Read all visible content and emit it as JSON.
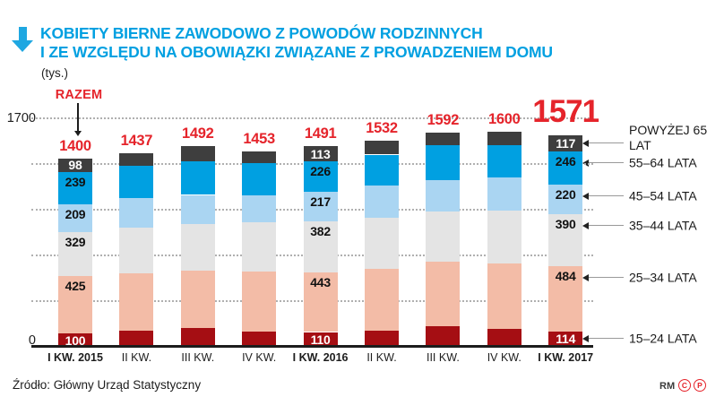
{
  "header": {
    "title_line1": "KOBIETY BIERNE ZAWODOWO Z POWODÓW RODZINNYCH",
    "title_line2": "I ZE WZGLĘDU NA OBOWIĄZKI ZWIĄZANE Z PROWADZENIEM DOMU",
    "unit": "(tys.)",
    "accent_color": "#00A0E1"
  },
  "chart_data": {
    "type": "bar",
    "stacked": true,
    "annotation_total": "RAZEM",
    "ylim": [
      0,
      1700
    ],
    "axis_labels": {
      "top": "1700",
      "bottom": "0"
    },
    "gridline_values": [
      340,
      680,
      1020,
      1360,
      1700
    ],
    "grid": true,
    "categories": [
      "I KW. 2015",
      "II KW.",
      "III KW.",
      "IV KW.",
      "I KW. 2016",
      "II KW.",
      "III KW.",
      "IV KW.",
      "I KW. 2017"
    ],
    "bold_categories": [
      0,
      4,
      8
    ],
    "labeled_columns": [
      0,
      4,
      8
    ],
    "totals": [
      1400,
      1437,
      1492,
      1453,
      1491,
      1532,
      1592,
      1600,
      1571
    ],
    "highlight_total_index": 8,
    "totals_color": "#E5242B",
    "series": [
      {
        "name": "15–24 LATA",
        "color": "#A50E13",
        "label_color": "#FFFFFF",
        "values": [
          100,
          120,
          138,
          113,
          110,
          123,
          152,
          136,
          114
        ]
      },
      {
        "name": "25–34 LATA",
        "color": "#F3BCA7",
        "label_color": "#111111",
        "values": [
          425,
          428,
          428,
          444,
          443,
          458,
          484,
          486,
          484
        ]
      },
      {
        "name": "35–44 LATA",
        "color": "#E4E4E4",
        "label_color": "#111111",
        "values": [
          329,
          338,
          350,
          367,
          382,
          376,
          370,
          394,
          390
        ]
      },
      {
        "name": "45–54 LATA",
        "color": "#AAD5F2",
        "label_color": "#111111",
        "values": [
          209,
          218,
          214,
          200,
          217,
          240,
          234,
          245,
          220
        ]
      },
      {
        "name": "55–64 LATA",
        "color": "#00A0E1",
        "label_color": "#111111",
        "values": [
          239,
          243,
          248,
          244,
          226,
          233,
          258,
          237,
          246
        ]
      },
      {
        "name": "POWYŻEJ 65 LAT",
        "color": "#3E3E3E",
        "label_color": "#FFFFFF",
        "values": [
          98,
          90,
          114,
          85,
          113,
          102,
          94,
          102,
          117
        ]
      }
    ]
  },
  "legend": {
    "items": [
      "POWYŻEJ 65 LAT",
      "55–64 LATA",
      "45–54 LATA",
      "35–44 LATA",
      "25–34 LATA",
      "15–24 LATA"
    ]
  },
  "footer": {
    "source": "Źródło: Główny Urząd Statystyczny",
    "credit": "RM",
    "marks": [
      "C",
      "P"
    ]
  }
}
